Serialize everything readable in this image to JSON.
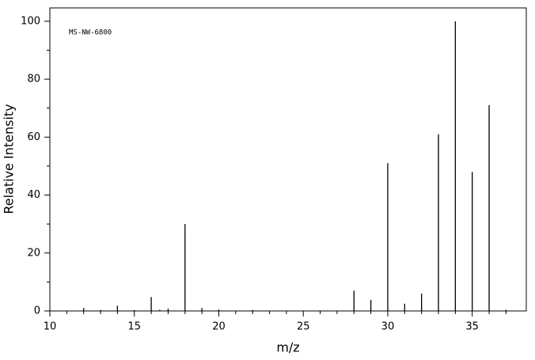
{
  "chart_data": {
    "type": "spectrum",
    "annotation": "MS-NW-6800",
    "x_label": "m/z",
    "y_label": "Relative Intensity",
    "color": "#000000",
    "x": [
      12,
      13,
      14,
      15,
      16,
      16.5,
      17,
      18,
      19,
      20,
      22,
      28,
      29,
      30,
      31,
      32,
      33,
      34,
      35,
      36,
      37
    ],
    "values": [
      1,
      0.3,
      1.8,
      0.3,
      4.8,
      0.4,
      0.8,
      30,
      1,
      0.5,
      0.3,
      7,
      3.8,
      51,
      2.5,
      6,
      61,
      100,
      48,
      71,
      0.4
    ],
    "xlim": [
      10,
      38.2
    ],
    "ylim": [
      0,
      104.6
    ],
    "xticks": [
      10,
      15,
      20,
      25,
      30,
      35
    ],
    "xminorticks": [
      11,
      12,
      13,
      14,
      16,
      17,
      18,
      19,
      21,
      22,
      23,
      24,
      26,
      27,
      28,
      29,
      31,
      32,
      33,
      34,
      36,
      37
    ],
    "yticks": [
      0,
      20,
      40,
      60,
      80,
      100
    ],
    "yminorticks": [
      10,
      30,
      50,
      70,
      90
    ]
  }
}
